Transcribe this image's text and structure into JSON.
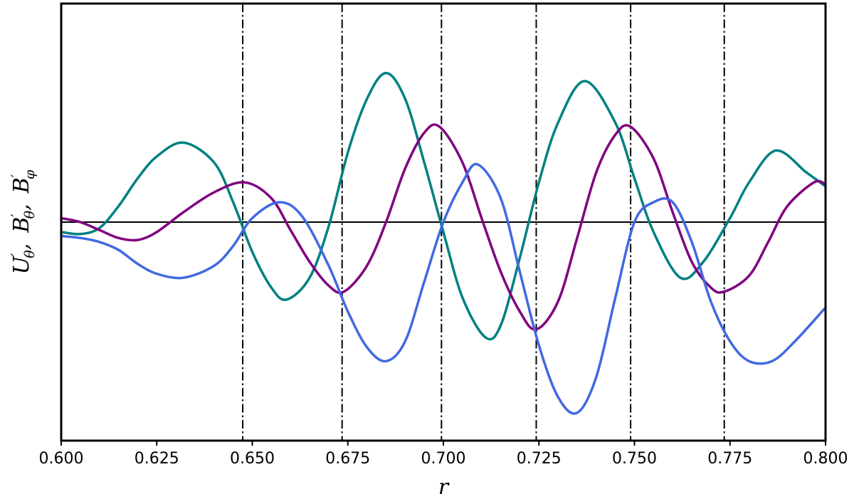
{
  "chart_data": {
    "type": "line",
    "xlabel": "r",
    "ylabel": {
      "symbols": [
        {
          "base": "U",
          "prime": "′",
          "sub": "θ",
          "sep": ","
        },
        {
          "base": "B",
          "prime": "′",
          "sub": "θ",
          "sep": ","
        },
        {
          "base": "B",
          "prime": "′",
          "sub": "φ",
          "sep": ""
        }
      ]
    },
    "xlim": [
      0.6,
      0.8
    ],
    "ylim": [
      -1.1,
      1.1
    ],
    "xticks": [
      0.6,
      0.625,
      0.65,
      0.675,
      0.7,
      0.725,
      0.75,
      0.775,
      0.8
    ],
    "xtick_labels": [
      "0.600",
      "0.625",
      "0.650",
      "0.675",
      "0.700",
      "0.725",
      "0.750",
      "0.775",
      "0.800"
    ],
    "yticks": [],
    "grid": false,
    "zero_line": 0,
    "vertical_lines": [
      0.6475,
      0.6735,
      0.6995,
      0.7243,
      0.749,
      0.7735
    ],
    "series": [
      {
        "color": "#008080",
        "x": [
          0.6,
          0.605,
          0.61,
          0.615,
          0.62,
          0.625,
          0.632,
          0.64,
          0.645,
          0.65,
          0.655,
          0.659,
          0.665,
          0.67,
          0.675,
          0.68,
          0.685,
          0.69,
          0.695,
          0.7,
          0.705,
          0.711,
          0.715,
          0.72,
          0.725,
          0.73,
          0.737,
          0.745,
          0.75,
          0.755,
          0.762,
          0.768,
          0.775,
          0.78,
          0.787,
          0.795,
          0.8
        ],
        "y": [
          -0.05,
          -0.06,
          -0.03,
          0.08,
          0.22,
          0.33,
          0.4,
          0.3,
          0.1,
          -0.15,
          -0.33,
          -0.39,
          -0.28,
          -0.02,
          0.35,
          0.62,
          0.75,
          0.62,
          0.3,
          -0.05,
          -0.38,
          -0.58,
          -0.52,
          -0.18,
          0.2,
          0.5,
          0.71,
          0.5,
          0.22,
          -0.05,
          -0.28,
          -0.2,
          0.02,
          0.2,
          0.36,
          0.25,
          0.18
        ]
      },
      {
        "color": "#800080",
        "x": [
          0.6,
          0.605,
          0.61,
          0.615,
          0.62,
          0.625,
          0.632,
          0.64,
          0.648,
          0.655,
          0.66,
          0.665,
          0.67,
          0.674,
          0.68,
          0.685,
          0.69,
          0.695,
          0.699,
          0.705,
          0.71,
          0.715,
          0.72,
          0.7243,
          0.73,
          0.735,
          0.74,
          0.745,
          0.749,
          0.755,
          0.76,
          0.765,
          0.77,
          0.7735,
          0.78,
          0.785,
          0.79,
          0.797,
          0.8
        ],
        "y": [
          0.02,
          0.0,
          -0.04,
          -0.08,
          -0.09,
          -0.05,
          0.05,
          0.15,
          0.2,
          0.12,
          -0.04,
          -0.2,
          -0.32,
          -0.35,
          -0.22,
          0.0,
          0.27,
          0.45,
          0.48,
          0.3,
          0.02,
          -0.25,
          -0.45,
          -0.54,
          -0.4,
          -0.08,
          0.25,
          0.44,
          0.48,
          0.32,
          0.05,
          -0.2,
          -0.33,
          -0.35,
          -0.27,
          -0.1,
          0.08,
          0.2,
          0.19
        ]
      },
      {
        "color": "#4169E1",
        "x": [
          0.6,
          0.605,
          0.61,
          0.615,
          0.62,
          0.625,
          0.632,
          0.64,
          0.645,
          0.65,
          0.657,
          0.663,
          0.67,
          0.675,
          0.68,
          0.685,
          0.69,
          0.695,
          0.7,
          0.705,
          0.709,
          0.715,
          0.72,
          0.725,
          0.73,
          0.735,
          0.74,
          0.745,
          0.75,
          0.755,
          0.76,
          0.765,
          0.77,
          0.775,
          0.78,
          0.786,
          0.792,
          0.8
        ],
        "y": [
          -0.07,
          -0.08,
          -0.1,
          -0.14,
          -0.21,
          -0.26,
          -0.28,
          -0.22,
          -0.12,
          0.02,
          0.1,
          0.03,
          -0.22,
          -0.45,
          -0.63,
          -0.7,
          -0.6,
          -0.3,
          0.0,
          0.2,
          0.29,
          0.12,
          -0.25,
          -0.62,
          -0.88,
          -0.96,
          -0.78,
          -0.38,
          0.0,
          0.1,
          0.1,
          -0.1,
          -0.4,
          -0.6,
          -0.7,
          -0.7,
          -0.6,
          -0.43
        ]
      }
    ]
  }
}
